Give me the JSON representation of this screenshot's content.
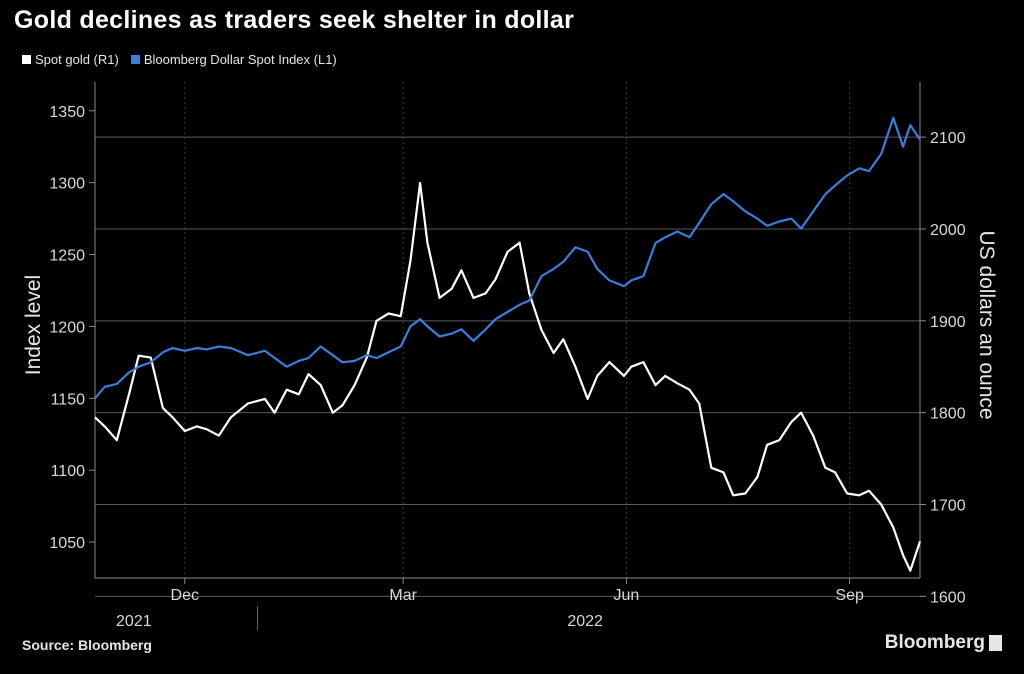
{
  "header": {
    "title": "Gold declines as traders seek shelter in dollar"
  },
  "legend": [
    {
      "label": "Spot gold (R1)",
      "color": "#ffffff"
    },
    {
      "label": "Bloomberg Dollar Spot Index (L1)",
      "color": "#3b7ddd"
    }
  ],
  "footer": {
    "source": "Source: Bloomberg",
    "brand": "Bloomberg"
  },
  "chart_data": {
    "type": "line",
    "title": "Gold declines as traders seek shelter in dollar",
    "ylabel": "Index level",
    "y2label": "US dollars an ounce",
    "ylim": [
      1025,
      1370
    ],
    "y2lim": [
      1620,
      2160
    ],
    "yticks": [
      1050,
      1100,
      1150,
      1200,
      1250,
      1300,
      1350
    ],
    "y2ticks": [
      1600,
      1700,
      1800,
      1900,
      2000,
      2100
    ],
    "xticks": [
      {
        "label": "Dec",
        "date": "2021-12-01"
      },
      {
        "label": "Mar",
        "date": "2022-03-01"
      },
      {
        "label": "Jun",
        "date": "2022-06-01"
      },
      {
        "label": "Sep",
        "date": "2022-09-01"
      }
    ],
    "years": [
      {
        "label": "2021",
        "date": "2021-11-10"
      },
      {
        "label": "2022",
        "date": "2022-05-15"
      }
    ],
    "xlim": [
      "2021-10-25",
      "2022-09-30"
    ],
    "grid": true,
    "legend_position": "top-left",
    "series": [
      {
        "name": "Spot gold (R1)",
        "axis": "right",
        "color": "#ffffff",
        "points": [
          [
            "2021-10-25",
            1795
          ],
          [
            "2021-10-29",
            1785
          ],
          [
            "2021-11-03",
            1770
          ],
          [
            "2021-11-08",
            1820
          ],
          [
            "2021-11-12",
            1862
          ],
          [
            "2021-11-17",
            1860
          ],
          [
            "2021-11-22",
            1805
          ],
          [
            "2021-11-26",
            1795
          ],
          [
            "2021-12-01",
            1780
          ],
          [
            "2021-12-06",
            1785
          ],
          [
            "2021-12-10",
            1782
          ],
          [
            "2021-12-15",
            1775
          ],
          [
            "2021-12-20",
            1795
          ],
          [
            "2021-12-27",
            1810
          ],
          [
            "2022-01-03",
            1815
          ],
          [
            "2022-01-07",
            1800
          ],
          [
            "2022-01-12",
            1825
          ],
          [
            "2022-01-17",
            1820
          ],
          [
            "2022-01-21",
            1842
          ],
          [
            "2022-01-26",
            1830
          ],
          [
            "2022-01-31",
            1800
          ],
          [
            "2022-02-04",
            1808
          ],
          [
            "2022-02-09",
            1830
          ],
          [
            "2022-02-14",
            1860
          ],
          [
            "2022-02-18",
            1900
          ],
          [
            "2022-02-23",
            1908
          ],
          [
            "2022-02-28",
            1905
          ],
          [
            "2022-03-04",
            1965
          ],
          [
            "2022-03-08",
            2050
          ],
          [
            "2022-03-11",
            1985
          ],
          [
            "2022-03-16",
            1925
          ],
          [
            "2022-03-21",
            1935
          ],
          [
            "2022-03-25",
            1955
          ],
          [
            "2022-03-30",
            1925
          ],
          [
            "2022-04-04",
            1930
          ],
          [
            "2022-04-08",
            1945
          ],
          [
            "2022-04-13",
            1975
          ],
          [
            "2022-04-18",
            1985
          ],
          [
            "2022-04-22",
            1930
          ],
          [
            "2022-04-27",
            1890
          ],
          [
            "2022-05-02",
            1865
          ],
          [
            "2022-05-06",
            1880
          ],
          [
            "2022-05-11",
            1850
          ],
          [
            "2022-05-16",
            1815
          ],
          [
            "2022-05-20",
            1840
          ],
          [
            "2022-05-25",
            1855
          ],
          [
            "2022-05-31",
            1840
          ],
          [
            "2022-06-03",
            1850
          ],
          [
            "2022-06-08",
            1855
          ],
          [
            "2022-06-13",
            1830
          ],
          [
            "2022-06-17",
            1840
          ],
          [
            "2022-06-22",
            1832
          ],
          [
            "2022-06-27",
            1825
          ],
          [
            "2022-07-01",
            1810
          ],
          [
            "2022-07-06",
            1740
          ],
          [
            "2022-07-11",
            1735
          ],
          [
            "2022-07-15",
            1710
          ],
          [
            "2022-07-20",
            1712
          ],
          [
            "2022-07-25",
            1730
          ],
          [
            "2022-07-29",
            1765
          ],
          [
            "2022-08-03",
            1770
          ],
          [
            "2022-08-08",
            1790
          ],
          [
            "2022-08-12",
            1800
          ],
          [
            "2022-08-17",
            1775
          ],
          [
            "2022-08-22",
            1740
          ],
          [
            "2022-08-26",
            1735
          ],
          [
            "2022-08-31",
            1712
          ],
          [
            "2022-09-05",
            1710
          ],
          [
            "2022-09-09",
            1715
          ],
          [
            "2022-09-14",
            1700
          ],
          [
            "2022-09-19",
            1675
          ],
          [
            "2022-09-23",
            1645
          ],
          [
            "2022-09-26",
            1628
          ],
          [
            "2022-09-30",
            1660
          ]
        ]
      },
      {
        "name": "Bloomberg Dollar Spot Index (L1)",
        "axis": "left",
        "color": "#3b7ddd",
        "points": [
          [
            "2021-10-25",
            1150
          ],
          [
            "2021-10-29",
            1158
          ],
          [
            "2021-11-03",
            1160
          ],
          [
            "2021-11-08",
            1168
          ],
          [
            "2021-11-12",
            1172
          ],
          [
            "2021-11-17",
            1175
          ],
          [
            "2021-11-22",
            1182
          ],
          [
            "2021-11-26",
            1185
          ],
          [
            "2021-12-01",
            1183
          ],
          [
            "2021-12-06",
            1185
          ],
          [
            "2021-12-10",
            1184
          ],
          [
            "2021-12-15",
            1186
          ],
          [
            "2021-12-20",
            1185
          ],
          [
            "2021-12-27",
            1180
          ],
          [
            "2022-01-03",
            1183
          ],
          [
            "2022-01-07",
            1178
          ],
          [
            "2022-01-12",
            1172
          ],
          [
            "2022-01-17",
            1176
          ],
          [
            "2022-01-21",
            1178
          ],
          [
            "2022-01-26",
            1186
          ],
          [
            "2022-01-31",
            1180
          ],
          [
            "2022-02-04",
            1175
          ],
          [
            "2022-02-09",
            1176
          ],
          [
            "2022-02-14",
            1180
          ],
          [
            "2022-02-18",
            1178
          ],
          [
            "2022-02-23",
            1182
          ],
          [
            "2022-02-28",
            1186
          ],
          [
            "2022-03-04",
            1200
          ],
          [
            "2022-03-08",
            1205
          ],
          [
            "2022-03-11",
            1200
          ],
          [
            "2022-03-16",
            1193
          ],
          [
            "2022-03-21",
            1195
          ],
          [
            "2022-03-25",
            1198
          ],
          [
            "2022-03-30",
            1190
          ],
          [
            "2022-04-04",
            1198
          ],
          [
            "2022-04-08",
            1205
          ],
          [
            "2022-04-13",
            1210
          ],
          [
            "2022-04-18",
            1215
          ],
          [
            "2022-04-22",
            1218
          ],
          [
            "2022-04-27",
            1235
          ],
          [
            "2022-05-02",
            1240
          ],
          [
            "2022-05-06",
            1245
          ],
          [
            "2022-05-11",
            1255
          ],
          [
            "2022-05-16",
            1252
          ],
          [
            "2022-05-20",
            1240
          ],
          [
            "2022-05-25",
            1232
          ],
          [
            "2022-05-31",
            1228
          ],
          [
            "2022-06-03",
            1232
          ],
          [
            "2022-06-08",
            1235
          ],
          [
            "2022-06-13",
            1258
          ],
          [
            "2022-06-17",
            1262
          ],
          [
            "2022-06-22",
            1266
          ],
          [
            "2022-06-27",
            1262
          ],
          [
            "2022-07-01",
            1272
          ],
          [
            "2022-07-06",
            1285
          ],
          [
            "2022-07-11",
            1292
          ],
          [
            "2022-07-15",
            1287
          ],
          [
            "2022-07-20",
            1280
          ],
          [
            "2022-07-25",
            1275
          ],
          [
            "2022-07-29",
            1270
          ],
          [
            "2022-08-03",
            1273
          ],
          [
            "2022-08-08",
            1275
          ],
          [
            "2022-08-12",
            1268
          ],
          [
            "2022-08-17",
            1280
          ],
          [
            "2022-08-22",
            1292
          ],
          [
            "2022-08-26",
            1298
          ],
          [
            "2022-08-31",
            1305
          ],
          [
            "2022-09-05",
            1310
          ],
          [
            "2022-09-09",
            1308
          ],
          [
            "2022-09-14",
            1320
          ],
          [
            "2022-09-19",
            1345
          ],
          [
            "2022-09-23",
            1325
          ],
          [
            "2022-09-26",
            1340
          ],
          [
            "2022-09-30",
            1330
          ]
        ]
      }
    ]
  }
}
